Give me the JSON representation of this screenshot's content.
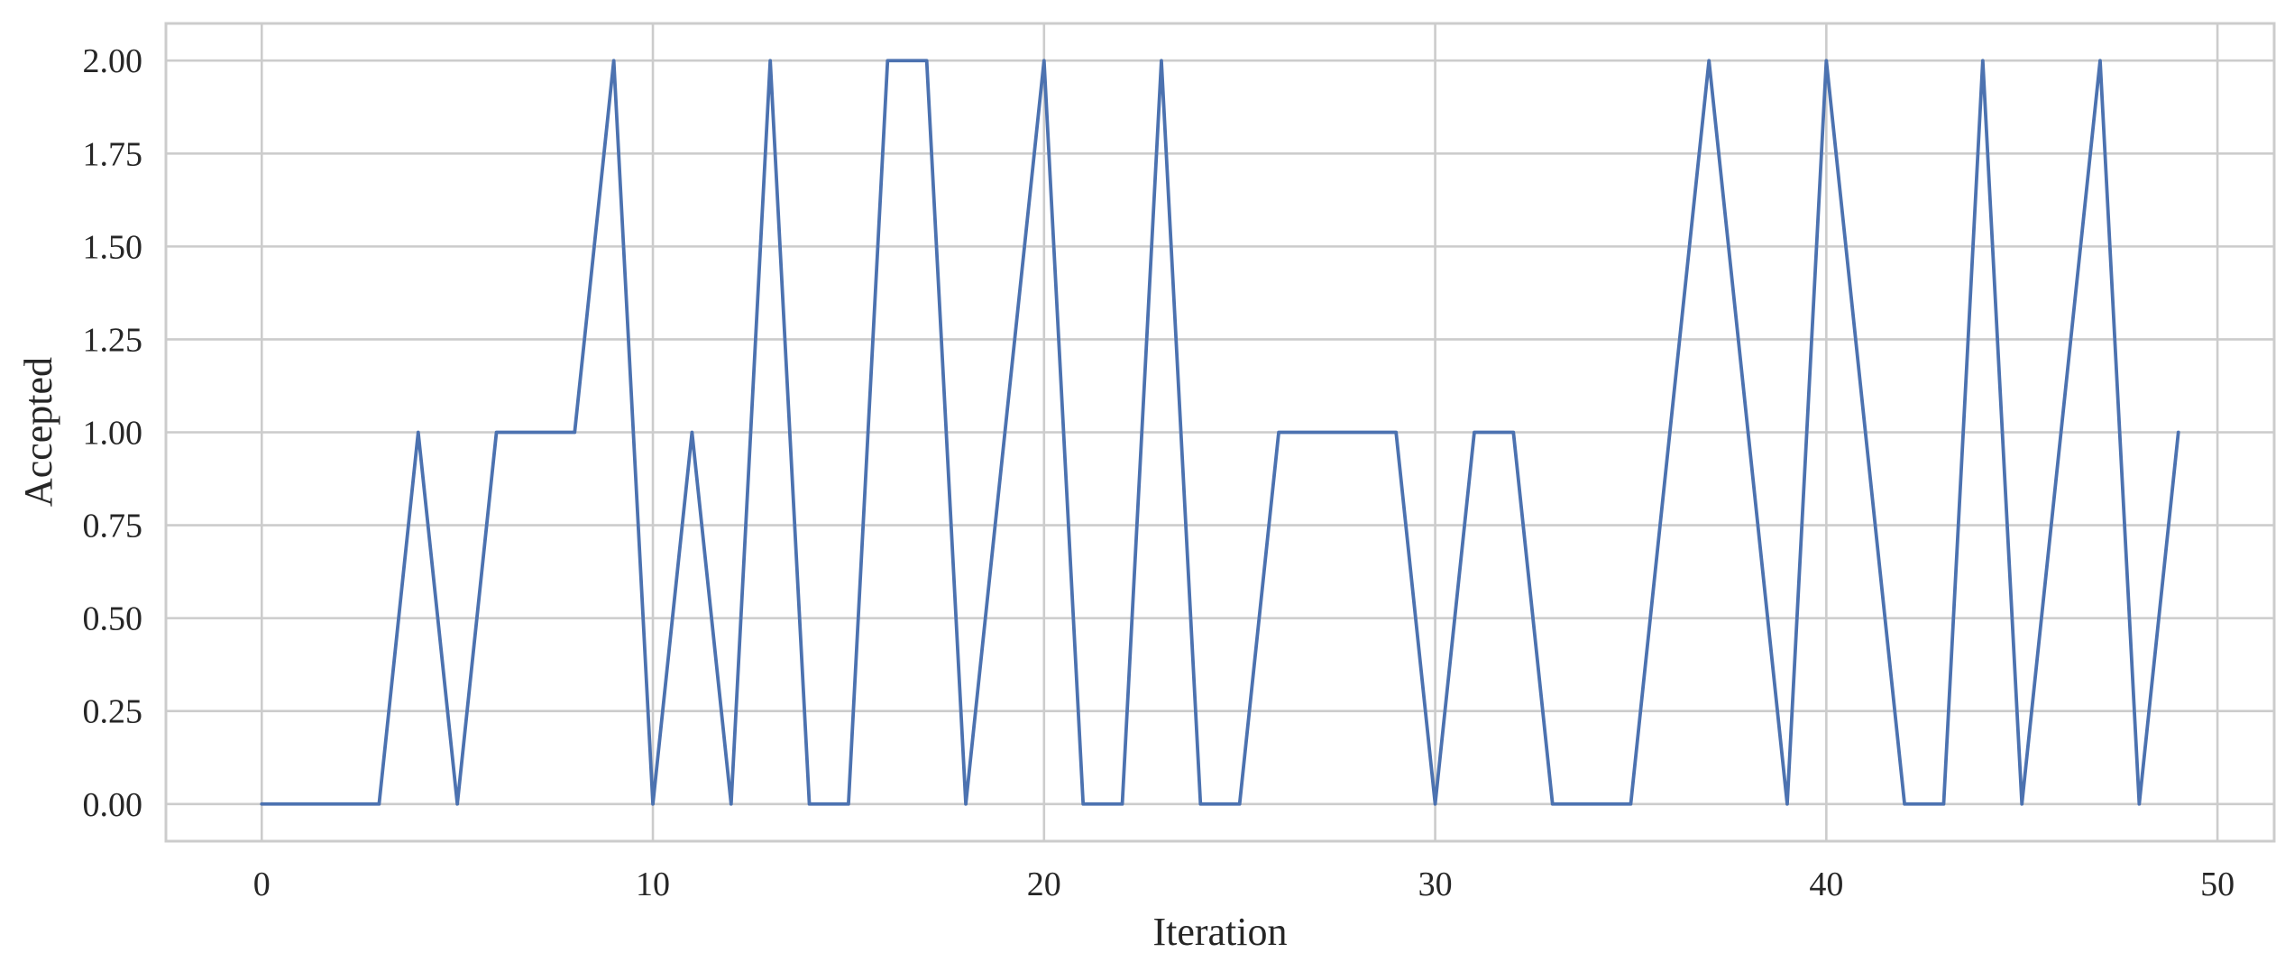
{
  "chart_data": {
    "type": "line",
    "title": "",
    "xlabel": "Iteration",
    "ylabel": "Accepted",
    "xlim": [
      -2.45,
      51.45
    ],
    "ylim": [
      -0.1,
      2.1
    ],
    "xticks": [
      0,
      10,
      20,
      30,
      40,
      50
    ],
    "xtick_labels": [
      "0",
      "10",
      "20",
      "30",
      "40",
      "50"
    ],
    "yticks": [
      0,
      0.25,
      0.5,
      0.75,
      1.0,
      1.25,
      1.5,
      1.75,
      2.0
    ],
    "ytick_labels": [
      "0.00",
      "0.25",
      "0.50",
      "0.75",
      "1.00",
      "1.25",
      "1.50",
      "1.75",
      "2.00"
    ],
    "grid": true,
    "legend": "none",
    "series": [
      {
        "color": "#4c72b0",
        "x": [
          0,
          1,
          2,
          3,
          4,
          5,
          6,
          7,
          8,
          9,
          10,
          11,
          12,
          13,
          14,
          15,
          16,
          17,
          18,
          19,
          20,
          21,
          22,
          23,
          24,
          25,
          26,
          27,
          28,
          29,
          30,
          31,
          32,
          33,
          34,
          35,
          36,
          37,
          38,
          39,
          40,
          41,
          42,
          43,
          44,
          45,
          46,
          47,
          48,
          49
        ],
        "values": [
          0,
          0,
          0,
          0,
          1,
          0,
          1,
          1,
          1,
          2,
          0,
          1,
          0,
          2,
          0,
          0,
          2,
          2,
          0,
          1,
          2,
          0,
          0,
          2,
          0,
          0,
          1,
          1,
          1,
          1,
          0,
          1,
          1,
          0,
          0,
          0,
          1,
          2,
          1,
          0,
          2,
          1,
          0,
          0,
          2,
          0,
          1,
          2,
          0,
          1
        ]
      }
    ]
  }
}
